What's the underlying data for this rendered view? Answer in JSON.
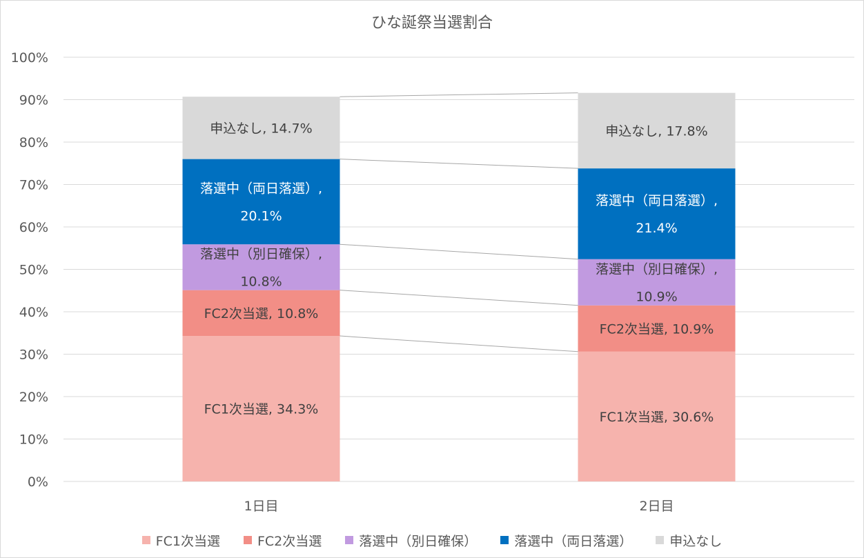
{
  "chart_data": {
    "type": "bar",
    "stacked": true,
    "title": "ひな誕祭当選割合",
    "categories": [
      "1日目",
      "2日目"
    ],
    "y_ticks": [
      "0%",
      "10%",
      "20%",
      "30%",
      "40%",
      "50%",
      "60%",
      "70%",
      "80%",
      "90%",
      "100%"
    ],
    "ylim": [
      0,
      100
    ],
    "grid": true,
    "legend_position": "bottom",
    "series": [
      {
        "name": "FC1次当選",
        "values": [
          34.3,
          30.6
        ],
        "color": "#f6b3ad",
        "text_color": "#404040",
        "labels": [
          [
            "FC1次当選, 34.3%"
          ],
          [
            "FC1次当選, 30.6%"
          ]
        ]
      },
      {
        "name": "FC2次当選",
        "values": [
          10.8,
          10.9
        ],
        "color": "#f28e86",
        "text_color": "#404040",
        "labels": [
          [
            "FC2次当選, 10.8%"
          ],
          [
            "FC2次当選, 10.9%"
          ]
        ]
      },
      {
        "name": "落選中（別日確保）",
        "values": [
          10.8,
          10.9
        ],
        "color": "#c19ae0",
        "text_color": "#404040",
        "labels": [
          [
            "落選中（別日確保）,",
            "10.8%"
          ],
          [
            "落選中（別日確保）,",
            "10.9%"
          ]
        ]
      },
      {
        "name": "落選中（両日落選）",
        "values": [
          20.1,
          21.4
        ],
        "color": "#0070c0",
        "text_color": "#ffffff",
        "labels": [
          [
            "落選中（両日落選）,",
            "20.1%"
          ],
          [
            "落選中（両日落選）,",
            "21.4%"
          ]
        ]
      },
      {
        "name": "申込なし",
        "values": [
          14.7,
          17.8
        ],
        "color": "#d9d9d9",
        "text_color": "#404040",
        "labels": [
          [
            "申込なし, 14.7%"
          ],
          [
            "申込なし, 17.8%"
          ]
        ]
      }
    ]
  }
}
